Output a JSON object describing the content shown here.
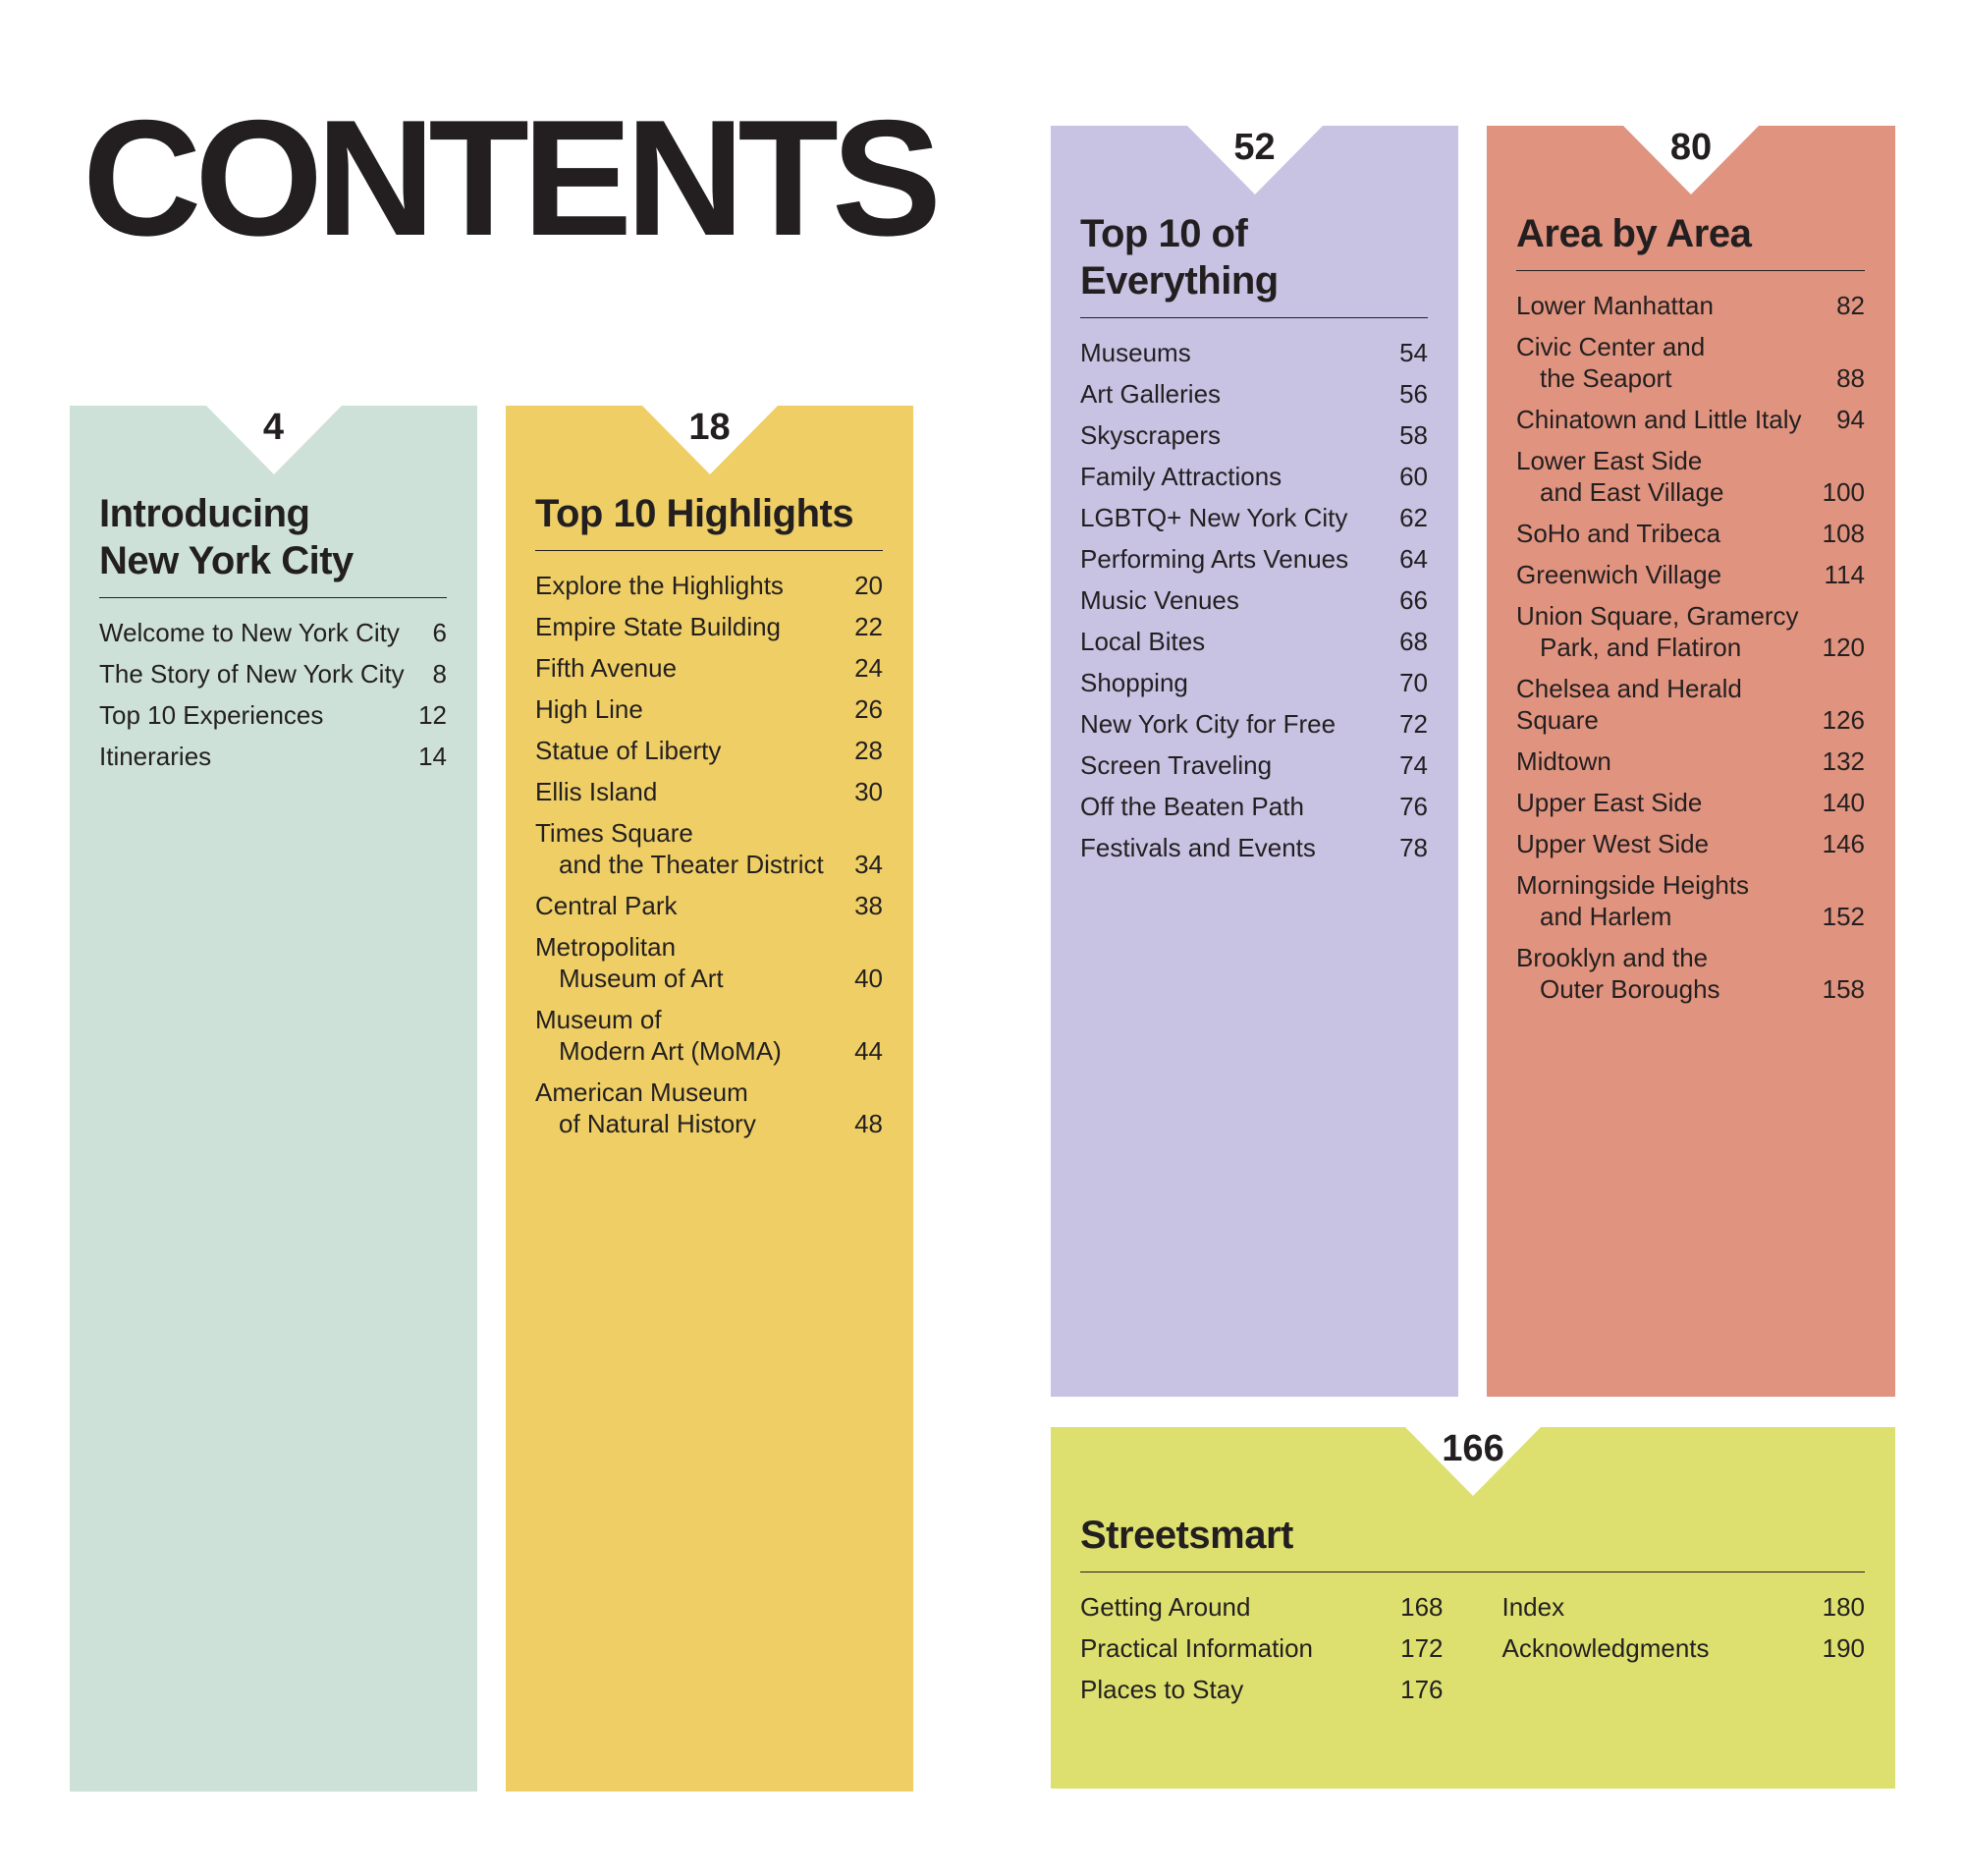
{
  "title": "CONTENTS",
  "colors": {
    "introducing": "#cde1d9",
    "highlights": "#efcf65",
    "everything": "#c8c2e3",
    "area": "#e0937e",
    "streetsmart": "#dde06f"
  },
  "sections": [
    {
      "id": "introducing",
      "page": "4",
      "heading": [
        "Introducing",
        "New York City"
      ],
      "items": [
        {
          "label": [
            "Welcome to New York City"
          ],
          "page": "6"
        },
        {
          "label": [
            "The Story of New York City"
          ],
          "page": "8"
        },
        {
          "label": [
            "Top 10 Experiences"
          ],
          "page": "12"
        },
        {
          "label": [
            "Itineraries"
          ],
          "page": "14"
        }
      ]
    },
    {
      "id": "highlights",
      "page": "18",
      "heading": [
        "Top 10 Highlights"
      ],
      "items": [
        {
          "label": [
            "Explore the Highlights"
          ],
          "page": "20"
        },
        {
          "label": [
            "Empire State Building"
          ],
          "page": "22"
        },
        {
          "label": [
            "Fifth Avenue"
          ],
          "page": "24"
        },
        {
          "label": [
            "High Line"
          ],
          "page": "26"
        },
        {
          "label": [
            "Statue of Liberty"
          ],
          "page": "28"
        },
        {
          "label": [
            "Ellis Island"
          ],
          "page": "30"
        },
        {
          "label": [
            "Times Square",
            "and the Theater District"
          ],
          "page": "34"
        },
        {
          "label": [
            "Central Park"
          ],
          "page": "38"
        },
        {
          "label": [
            "Metropolitan",
            "Museum of Art"
          ],
          "page": "40"
        },
        {
          "label": [
            "Museum of",
            "Modern Art (MoMA)"
          ],
          "page": "44"
        },
        {
          "label": [
            "American Museum",
            "of Natural History"
          ],
          "page": "48"
        }
      ]
    },
    {
      "id": "everything",
      "page": "52",
      "heading": [
        "Top 10 of",
        "Everything"
      ],
      "items": [
        {
          "label": [
            "Museums"
          ],
          "page": "54"
        },
        {
          "label": [
            "Art Galleries"
          ],
          "page": "56"
        },
        {
          "label": [
            "Skyscrapers"
          ],
          "page": "58"
        },
        {
          "label": [
            "Family Attractions"
          ],
          "page": "60"
        },
        {
          "label": [
            "LGBTQ+ New York City"
          ],
          "page": "62"
        },
        {
          "label": [
            "Performing Arts Venues"
          ],
          "page": "64"
        },
        {
          "label": [
            "Music Venues"
          ],
          "page": "66"
        },
        {
          "label": [
            "Local Bites"
          ],
          "page": "68"
        },
        {
          "label": [
            "Shopping"
          ],
          "page": "70"
        },
        {
          "label": [
            "New York City for Free"
          ],
          "page": "72"
        },
        {
          "label": [
            "Screen Traveling"
          ],
          "page": "74"
        },
        {
          "label": [
            "Off the Beaten Path"
          ],
          "page": "76"
        },
        {
          "label": [
            "Festivals and Events"
          ],
          "page": "78"
        }
      ]
    },
    {
      "id": "area",
      "page": "80",
      "heading": [
        "Area by Area"
      ],
      "items": [
        {
          "label": [
            "Lower Manhattan"
          ],
          "page": "82"
        },
        {
          "label": [
            "Civic Center and",
            "the Seaport"
          ],
          "page": "88"
        },
        {
          "label": [
            "Chinatown and Little Italy"
          ],
          "page": "94"
        },
        {
          "label": [
            "Lower East Side",
            "and East Village"
          ],
          "page": "100"
        },
        {
          "label": [
            "SoHo and Tribeca"
          ],
          "page": "108"
        },
        {
          "label": [
            "Greenwich Village"
          ],
          "page": "114"
        },
        {
          "label": [
            "Union Square, Gramercy",
            "Park, and Flatiron"
          ],
          "page": "120"
        },
        {
          "label": [
            "Chelsea and Herald Square"
          ],
          "page": "126"
        },
        {
          "label": [
            "Midtown"
          ],
          "page": "132"
        },
        {
          "label": [
            "Upper East Side"
          ],
          "page": "140"
        },
        {
          "label": [
            "Upper West Side"
          ],
          "page": "146"
        },
        {
          "label": [
            "Morningside Heights",
            "and Harlem"
          ],
          "page": "152"
        },
        {
          "label": [
            "Brooklyn and the",
            "Outer Boroughs"
          ],
          "page": "158"
        }
      ]
    },
    {
      "id": "streetsmart",
      "page": "166",
      "heading": [
        "Streetsmart"
      ],
      "items": [
        {
          "label": [
            "Getting Around"
          ],
          "page": "168"
        },
        {
          "label": [
            "Practical Information"
          ],
          "page": "172"
        },
        {
          "label": [
            "Places to Stay"
          ],
          "page": "176"
        }
      ],
      "items2": [
        {
          "label": [
            "Index"
          ],
          "page": "180"
        },
        {
          "label": [
            "Acknowledgments"
          ],
          "page": "190"
        }
      ]
    }
  ]
}
